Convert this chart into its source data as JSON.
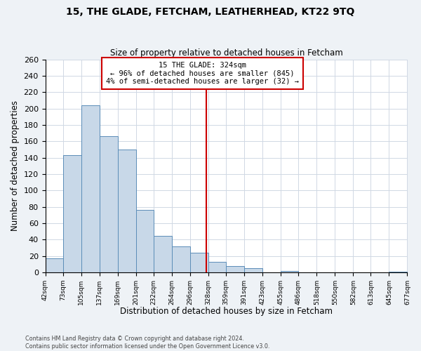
{
  "title": "15, THE GLADE, FETCHAM, LEATHERHEAD, KT22 9TQ",
  "subtitle": "Size of property relative to detached houses in Fetcham",
  "xlabel": "Distribution of detached houses by size in Fetcham",
  "ylabel": "Number of detached properties",
  "bin_edges": [
    42,
    73,
    105,
    137,
    169,
    201,
    232,
    264,
    296,
    328,
    359,
    391,
    423,
    455,
    486,
    518,
    550,
    582,
    613,
    645,
    677
  ],
  "bar_heights": [
    17,
    143,
    204,
    166,
    150,
    76,
    45,
    32,
    24,
    13,
    8,
    5,
    0,
    2,
    0,
    0,
    0,
    0,
    0,
    1
  ],
  "bar_color": "#c8d8e8",
  "bar_edge_color": "#5b8db8",
  "property_value": 324,
  "vline_color": "#cc0000",
  "annotation_title": "15 THE GLADE: 324sqm",
  "annotation_line1": "← 96% of detached houses are smaller (845)",
  "annotation_line2": "4% of semi-detached houses are larger (32) →",
  "annotation_box_color": "#ffffff",
  "annotation_box_edge": "#cc0000",
  "ylim": [
    0,
    260
  ],
  "yticks": [
    0,
    20,
    40,
    60,
    80,
    100,
    120,
    140,
    160,
    180,
    200,
    220,
    240,
    260
  ],
  "tick_labels": [
    "42sqm",
    "73sqm",
    "105sqm",
    "137sqm",
    "169sqm",
    "201sqm",
    "232sqm",
    "264sqm",
    "296sqm",
    "328sqm",
    "359sqm",
    "391sqm",
    "423sqm",
    "455sqm",
    "486sqm",
    "518sqm",
    "550sqm",
    "582sqm",
    "613sqm",
    "645sqm",
    "677sqm"
  ],
  "footer_line1": "Contains HM Land Registry data © Crown copyright and database right 2024.",
  "footer_line2": "Contains public sector information licensed under the Open Government Licence v3.0.",
  "background_color": "#eef2f6",
  "plot_bg_color": "#ffffff",
  "grid_color": "#d0d8e4"
}
